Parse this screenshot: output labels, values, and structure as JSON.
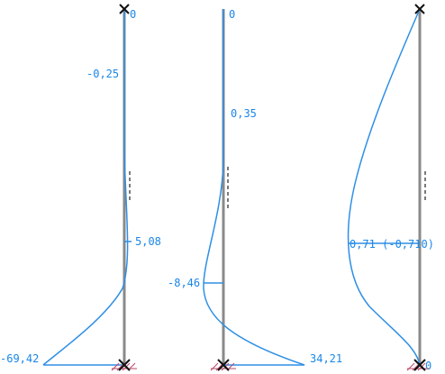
{
  "diagrams": [
    {
      "id": "left",
      "labels": {
        "top": "0",
        "upper": "-0,25",
        "mid": "5,08",
        "bottom": "-69,42"
      }
    },
    {
      "id": "middle",
      "labels": {
        "top": "0",
        "upper": "0,35",
        "mid": "-8,46",
        "bottom": "34,21"
      }
    },
    {
      "id": "right",
      "labels": {
        "mid": "0,71 (-0,710)",
        "bottom": "0"
      }
    }
  ],
  "colors": {
    "curve": "#2e8fe6",
    "label": "#1a86e8",
    "member": "#8a8a8a",
    "node": "#111111",
    "support_hatch": "#b8476a"
  }
}
